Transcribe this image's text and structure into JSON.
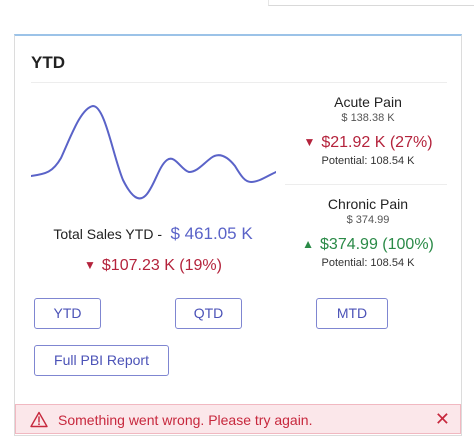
{
  "card": {
    "title": "YTD",
    "total": {
      "label": "Total Sales YTD -",
      "value": "$ 461.05 K"
    },
    "total_change": "$107.23 K (19%)",
    "metrics": [
      {
        "name": "Acute Pain",
        "sub_value": "$ 138.38 K",
        "delta": "$21.92 K (27%)",
        "direction": "down",
        "potential": "Potential: 108.54 K"
      },
      {
        "name": "Chronic Pain",
        "sub_value": "$ 374.99",
        "delta": "$374.99 (100%)",
        "direction": "up",
        "potential": "Potential: 108.54 K"
      }
    ],
    "buttons": {
      "ytd": "YTD",
      "qtd": "QTD",
      "mtd": "MTD",
      "full_report": "Full PBI Report"
    }
  },
  "error": {
    "message": "Something went wrong. Please try again."
  },
  "colors": {
    "accent": "#5a63c8",
    "negative": "#b4233c",
    "positive": "#2a8a47",
    "error_bg": "#fbe7ea"
  },
  "icons": {
    "warning": "warning-triangle-icon",
    "close": "close-icon",
    "down": "triangle-down-icon",
    "up": "triangle-up-icon"
  }
}
